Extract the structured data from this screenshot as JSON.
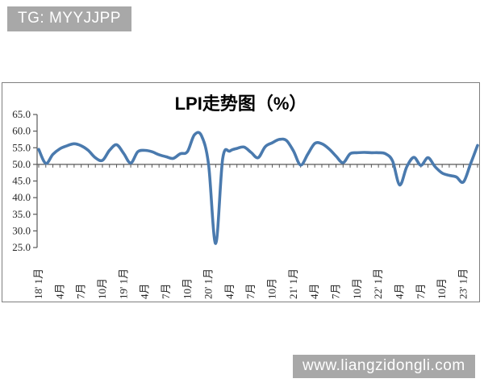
{
  "watermarks": {
    "top_left": "TG: MYYJJPP",
    "bottom_right": "www.liangzidongli.com"
  },
  "colors": {
    "line": "#4a7aae",
    "badge_bg": "#a8a8a8",
    "chart_border": "#7f7f7f",
    "axis": "#595959",
    "label": "#262626"
  },
  "chart_data": {
    "type": "line",
    "title": "LPI走势图（%）",
    "xlabel": "",
    "ylabel": "",
    "ylim": [
      25,
      65
    ],
    "y_step": 5,
    "axis_cross_y": 50,
    "grid": false,
    "legend": "none",
    "smooth": true,
    "y_tick_labels": [
      "65.0",
      "60.0",
      "55.0",
      "50.0",
      "45.0",
      "40.0",
      "35.0",
      "30.0",
      "25.0"
    ],
    "x_tick_labels": [
      "18' 1月",
      "4月",
      "7月",
      "10月",
      "19' 1月",
      "4月",
      "7月",
      "10月",
      "20' 1月",
      "4月",
      "7月",
      "10月",
      "21' 1月",
      "4月",
      "7月",
      "10月",
      "22' 1月",
      "4月",
      "7月",
      "10月",
      "23' 1月"
    ],
    "x_label_every": 3,
    "x_range_note": "monthly points, Jan 2018 - Mar 2023, values estimated from plot",
    "series": [
      {
        "name": "LPI",
        "values": [
          54.5,
          50.3,
          53.0,
          54.7,
          55.6,
          56.2,
          55.6,
          54.2,
          52.0,
          51.2,
          54.2,
          55.9,
          53.3,
          50.4,
          53.8,
          54.2,
          53.8,
          52.9,
          52.3,
          51.8,
          53.2,
          53.8,
          58.9,
          58.6,
          49.9,
          26.2,
          51.8,
          54.0,
          54.8,
          55.2,
          53.6,
          52.0,
          55.3,
          56.5,
          57.5,
          57.2,
          54.0,
          49.8,
          53.0,
          56.3,
          56.2,
          54.7,
          52.5,
          50.5,
          53.2,
          53.5,
          53.6,
          53.5,
          53.5,
          53.2,
          51.0,
          43.8,
          49.3,
          52.1,
          49.7,
          52.0,
          49.3,
          47.4,
          46.7,
          46.2,
          44.7,
          50.1,
          55.7
        ]
      }
    ]
  }
}
